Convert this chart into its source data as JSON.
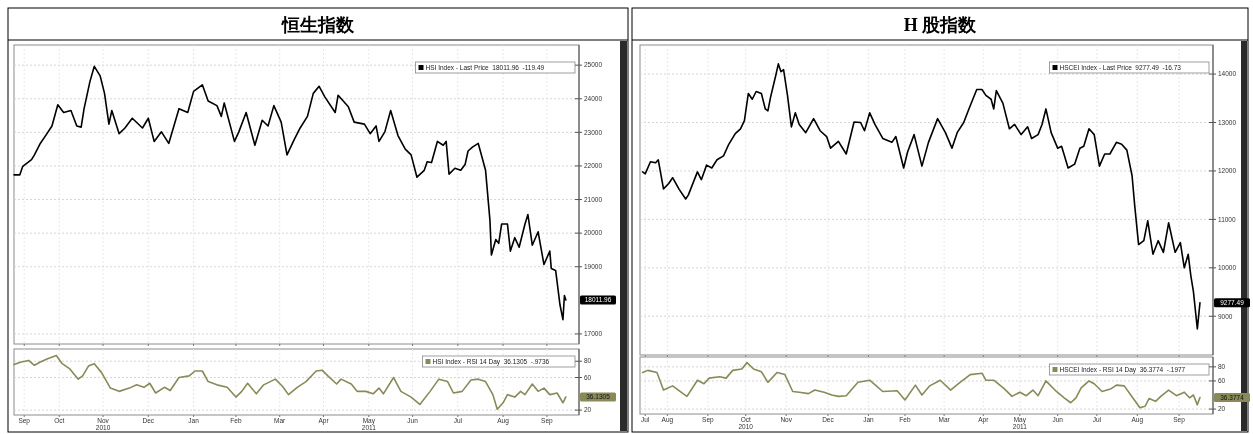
{
  "chart_data": [
    {
      "type": "line",
      "title": "恒生指数",
      "xlim": [
        "2010-09-15",
        "2011-10-07"
      ],
      "ylim": [
        16700,
        25600
      ],
      "yticks": [
        17000,
        19000,
        20000,
        21000,
        22000,
        23000,
        24000,
        25000
      ],
      "xticks": [
        {
          "value": "2010-09-22",
          "label": null
        },
        {
          "value": "2010-10-16",
          "label": null
        },
        {
          "value": "2010-11-15",
          "label": null
        },
        {
          "value": "2010-12-16",
          "label": null
        },
        {
          "value": "2011-01-16",
          "label": null
        },
        {
          "value": "2011-02-14",
          "label": null
        },
        {
          "value": "2011-03-16",
          "label": null
        },
        {
          "value": "2011-04-15",
          "label": null
        },
        {
          "value": "2011-05-16",
          "label": null
        },
        {
          "value": "2011-06-15",
          "label": null
        },
        {
          "value": "2011-07-16",
          "label": null
        },
        {
          "value": "2011-08-16",
          "label": null
        },
        {
          "value": "2011-09-15",
          "label": null
        }
      ],
      "tick_labels": "y",
      "grid": true,
      "legend": "top right",
      "x": [
        "2010-09-15",
        "2010-09-19",
        "2010-09-21",
        "2010-09-27",
        "2010-09-29",
        "2010-10-03",
        "2010-10-07",
        "2010-10-11",
        "2010-10-15",
        "2010-10-19",
        "2010-10-24",
        "2010-10-28",
        "2010-10-31",
        "2010-11-02",
        "2010-11-06",
        "2010-11-09",
        "2010-11-13",
        "2010-11-16",
        "2010-11-19",
        "2010-11-21",
        "2010-11-26",
        "2010-11-30",
        "2010-12-05",
        "2010-12-12",
        "2010-12-16",
        "2010-12-20",
        "2010-12-25",
        "2010-12-30",
        "2011-01-06",
        "2011-01-12",
        "2011-01-16",
        "2011-01-22",
        "2011-01-26",
        "2011-02-01",
        "2011-02-04",
        "2011-02-06",
        "2011-02-13",
        "2011-02-16",
        "2011-02-21",
        "2011-02-27",
        "2011-03-04",
        "2011-03-08",
        "2011-03-12",
        "2011-03-17",
        "2011-03-21",
        "2011-03-26",
        "2011-03-30",
        "2011-04-04",
        "2011-04-08",
        "2011-04-12",
        "2011-04-16",
        "2011-04-23",
        "2011-04-25",
        "2011-05-02",
        "2011-05-06",
        "2011-05-13",
        "2011-05-17",
        "2011-05-21",
        "2011-05-23",
        "2011-05-27",
        "2011-05-31",
        "2011-06-05",
        "2011-06-10",
        "2011-06-14",
        "2011-06-18",
        "2011-06-23",
        "2011-06-25",
        "2011-06-28",
        "2011-07-02",
        "2011-07-06",
        "2011-07-08",
        "2011-07-10",
        "2011-07-14",
        "2011-07-18",
        "2011-07-21",
        "2011-07-23",
        "2011-07-26",
        "2011-07-30",
        "2011-08-04",
        "2011-08-07",
        "2011-08-08",
        "2011-08-11",
        "2011-08-13",
        "2011-08-15",
        "2011-08-19",
        "2011-08-21",
        "2011-08-24",
        "2011-08-27",
        "2011-08-31",
        "2011-09-02",
        "2011-09-05",
        "2011-09-09",
        "2011-09-13",
        "2011-09-17",
        "2011-09-18",
        "2011-09-21",
        "2011-09-24",
        "2011-09-26",
        "2011-09-27",
        "2011-09-28"
      ],
      "series": [
        {
          "name": "HSI Index - Last Price  18011.96  -119.49",
          "color": "#000000",
          "values": [
            21735,
            21735,
            21990,
            22190,
            22330,
            22670,
            22925,
            23190,
            23820,
            23590,
            23650,
            23190,
            23155,
            23705,
            24510,
            24965,
            24680,
            24160,
            23245,
            23650,
            22960,
            23130,
            23420,
            23130,
            23420,
            22730,
            23015,
            22670,
            23705,
            23590,
            24220,
            24415,
            23935,
            23795,
            23475,
            23875,
            22730,
            23015,
            23590,
            22615,
            23360,
            23190,
            23795,
            23305,
            22330,
            22790,
            23130,
            23475,
            24160,
            24370,
            24050,
            23590,
            24105,
            23760,
            23305,
            23245,
            22960,
            23190,
            22730,
            23015,
            23650,
            22905,
            22500,
            22330,
            21665,
            21870,
            22125,
            22100,
            22730,
            22615,
            22730,
            21755,
            21930,
            21870,
            22045,
            22445,
            22560,
            22670,
            21870,
            20380,
            19350,
            19810,
            19695,
            20270,
            20270,
            19465,
            19865,
            19580,
            20270,
            20555,
            19640,
            20040,
            19065,
            19465,
            18950,
            18890,
            17860,
            17425,
            18145,
            18011.96
          ]
        }
      ],
      "annotations": [
        "18011.96"
      ]
    },
    {
      "type": "line",
      "xlim": [
        "2010-09-15",
        "2011-10-07"
      ],
      "ylim": [
        14,
        95
      ],
      "yticks": [
        20,
        60,
        80
      ],
      "xticks": [
        {
          "value": "2010-09-22",
          "label": "Sep"
        },
        {
          "value": "2010-10-16",
          "label": "Oct"
        },
        {
          "value": "2010-11-15",
          "label": "Nov\n2010"
        },
        {
          "value": "2010-12-16",
          "label": "Dec"
        },
        {
          "value": "2011-01-16",
          "label": "Jan"
        },
        {
          "value": "2011-02-14",
          "label": "Feb"
        },
        {
          "value": "2011-03-16",
          "label": "Mar"
        },
        {
          "value": "2011-04-15",
          "label": "Apr"
        },
        {
          "value": "2011-05-16",
          "label": "May\n2011"
        },
        {
          "value": "2011-06-15",
          "label": "Jun"
        },
        {
          "value": "2011-07-16",
          "label": "Jul"
        },
        {
          "value": "2011-08-16",
          "label": "Aug"
        },
        {
          "value": "2011-09-15",
          "label": "Sep"
        }
      ],
      "grid": true,
      "legend": "top right",
      "x": [
        "2010-09-15",
        "2010-09-20",
        "2010-09-25",
        "2010-09-29",
        "2010-10-03",
        "2010-10-08",
        "2010-10-14",
        "2010-10-18",
        "2010-10-23",
        "2010-10-29",
        "2010-11-01",
        "2010-11-05",
        "2010-11-09",
        "2010-11-14",
        "2010-11-20",
        "2010-11-26",
        "2010-12-03",
        "2010-12-08",
        "2010-12-13",
        "2010-12-17",
        "2010-12-21",
        "2010-12-27",
        "2010-12-31",
        "2011-01-06",
        "2011-01-13",
        "2011-01-17",
        "2011-01-22",
        "2011-01-26",
        "2011-02-01",
        "2011-02-08",
        "2011-02-14",
        "2011-02-18",
        "2011-02-22",
        "2011-02-28",
        "2011-03-05",
        "2011-03-13",
        "2011-03-18",
        "2011-03-22",
        "2011-03-28",
        "2011-04-03",
        "2011-04-10",
        "2011-04-14",
        "2011-04-18",
        "2011-04-24",
        "2011-04-27",
        "2011-05-04",
        "2011-05-08",
        "2011-05-14",
        "2011-05-19",
        "2011-05-23",
        "2011-05-26",
        "2011-06-02",
        "2011-06-07",
        "2011-06-14",
        "2011-06-20",
        "2011-06-27",
        "2011-07-03",
        "2011-07-09",
        "2011-07-13",
        "2011-07-19",
        "2011-07-25",
        "2011-07-30",
        "2011-08-04",
        "2011-08-09",
        "2011-08-12",
        "2011-08-16",
        "2011-08-19",
        "2011-08-24",
        "2011-08-28",
        "2011-08-31",
        "2011-09-05",
        "2011-09-09",
        "2011-09-13",
        "2011-09-17",
        "2011-09-22",
        "2011-09-26",
        "2011-09-28"
      ],
      "series": [
        {
          "name": "HSI Index - RSI 14 Day  36.1305  -.9736",
          "color": "#8a8a58",
          "values": [
            76,
            79,
            81,
            75,
            79,
            83,
            87,
            77,
            71,
            58,
            62,
            74,
            77,
            66,
            47,
            43,
            47,
            51,
            48,
            53,
            41,
            48,
            44,
            60,
            62,
            68,
            68,
            55,
            51,
            48,
            36,
            43,
            53,
            40,
            51,
            58,
            49,
            39,
            48,
            55,
            68,
            69,
            62,
            52,
            58,
            52,
            43,
            43,
            40,
            47,
            40,
            60,
            43,
            36,
            27,
            43,
            58,
            55,
            41,
            43,
            57,
            58,
            55,
            39,
            21,
            29,
            39,
            36,
            43,
            39,
            52,
            43,
            47,
            39,
            41,
            29,
            36.1305
          ]
        }
      ],
      "annotations": [
        "36.1305"
      ]
    },
    {
      "type": "line",
      "title": "H 股指数",
      "xlim": [
        "2010-07-26",
        "2011-10-08"
      ],
      "ylim": [
        8200,
        14600
      ],
      "yticks": [
        9000,
        10000,
        11000,
        12000,
        13000,
        14000
      ],
      "xticks": [
        {
          "value": "2010-07-30",
          "label": null
        },
        {
          "value": "2010-08-16",
          "label": null
        },
        {
          "value": "2010-09-16",
          "label": null
        },
        {
          "value": "2010-10-15",
          "label": null
        },
        {
          "value": "2010-11-15",
          "label": null
        },
        {
          "value": "2010-12-17",
          "label": null
        },
        {
          "value": "2011-01-17",
          "label": null
        },
        {
          "value": "2011-02-14",
          "label": null
        },
        {
          "value": "2011-03-16",
          "label": null
        },
        {
          "value": "2011-04-15",
          "label": null
        },
        {
          "value": "2011-05-13",
          "label": null
        },
        {
          "value": "2011-06-11",
          "label": null
        },
        {
          "value": "2011-07-11",
          "label": null
        },
        {
          "value": "2011-08-11",
          "label": null
        },
        {
          "value": "2011-09-12",
          "label": null
        }
      ],
      "tick_labels": "y",
      "grid": true,
      "legend": "top right",
      "x": [
        "2010-07-28",
        "2010-07-30",
        "2010-08-03",
        "2010-08-07",
        "2010-08-09",
        "2010-08-13",
        "2010-08-17",
        "2010-08-20",
        "2010-08-25",
        "2010-08-30",
        "2010-09-01",
        "2010-09-08",
        "2010-09-11",
        "2010-09-15",
        "2010-09-19",
        "2010-09-23",
        "2010-09-28",
        "2010-10-02",
        "2010-10-07",
        "2010-10-11",
        "2010-10-14",
        "2010-10-17",
        "2010-10-20",
        "2010-10-23",
        "2010-10-27",
        "2010-10-30",
        "2010-11-01",
        "2010-11-03",
        "2010-11-07",
        "2010-11-09",
        "2010-11-11",
        "2010-11-13",
        "2010-11-16",
        "2010-11-19",
        "2010-11-22",
        "2010-11-25",
        "2010-11-30",
        "2010-12-06",
        "2010-12-11",
        "2010-12-16",
        "2010-12-19",
        "2010-12-25",
        "2010-12-31",
        "2011-01-06",
        "2011-01-11",
        "2011-01-14",
        "2011-01-18",
        "2011-01-22",
        "2011-01-28",
        "2011-02-04",
        "2011-02-07",
        "2011-02-13",
        "2011-02-16",
        "2011-02-21",
        "2011-02-27",
        "2011-03-04",
        "2011-03-11",
        "2011-03-17",
        "2011-03-22",
        "2011-03-26",
        "2011-03-31",
        "2011-04-04",
        "2011-04-10",
        "2011-04-14",
        "2011-04-17",
        "2011-04-21",
        "2011-04-23",
        "2011-04-25",
        "2011-04-30",
        "2011-05-05",
        "2011-05-09",
        "2011-05-14",
        "2011-05-19",
        "2011-05-22",
        "2011-05-27",
        "2011-05-30",
        "2011-06-02",
        "2011-06-06",
        "2011-06-11",
        "2011-06-14",
        "2011-06-19",
        "2011-06-24",
        "2011-06-28",
        "2011-07-01",
        "2011-07-05",
        "2011-07-09",
        "2011-07-13",
        "2011-07-17",
        "2011-07-21",
        "2011-07-26",
        "2011-07-30",
        "2011-08-03",
        "2011-08-07",
        "2011-08-09",
        "2011-08-12",
        "2011-08-16",
        "2011-08-19",
        "2011-08-23",
        "2011-08-27",
        "2011-08-31",
        "2011-09-04",
        "2011-09-09",
        "2011-09-13",
        "2011-09-16",
        "2011-09-19",
        "2011-09-21",
        "2011-09-23",
        "2011-09-26",
        "2011-09-28"
      ],
      "series": [
        {
          "name": "HSCEI Index - Last Price  9277.49  -16.73",
          "color": "#000000",
          "values": [
            11980,
            11940,
            12190,
            12170,
            12230,
            11630,
            11740,
            11860,
            11620,
            11420,
            11500,
            11980,
            11820,
            12120,
            12060,
            12230,
            12310,
            12550,
            12770,
            12870,
            13040,
            13600,
            13480,
            13640,
            13600,
            13280,
            13240,
            13520,
            13970,
            14210,
            14050,
            14090,
            13560,
            12910,
            13200,
            12960,
            12790,
            13080,
            12830,
            12710,
            12470,
            12610,
            12350,
            13010,
            13000,
            12830,
            13200,
            12960,
            12670,
            12590,
            12710,
            12060,
            12390,
            12750,
            12100,
            12590,
            13080,
            12790,
            12470,
            12790,
            13000,
            13280,
            13680,
            13680,
            13560,
            13480,
            13280,
            13660,
            13400,
            12870,
            12960,
            12750,
            12910,
            12670,
            12750,
            12960,
            13280,
            12790,
            12470,
            12510,
            12060,
            12140,
            12470,
            12510,
            12870,
            12750,
            12100,
            12350,
            12350,
            12590,
            12550,
            12430,
            11900,
            11290,
            10480,
            10560,
            10970,
            10280,
            10560,
            10320,
            10930,
            10320,
            10520,
            10000,
            10280,
            9840,
            9510,
            8740,
            9277.49
          ]
        }
      ],
      "annotations": [
        "9277.49"
      ]
    },
    {
      "type": "line",
      "xlim": [
        "2010-07-26",
        "2011-10-08"
      ],
      "ylim": [
        13,
        94
      ],
      "yticks": [
        20,
        60,
        80
      ],
      "xticks": [
        {
          "value": "2010-07-30",
          "label": "Jul"
        },
        {
          "value": "2010-08-16",
          "label": "Aug"
        },
        {
          "value": "2010-09-16",
          "label": "Sep"
        },
        {
          "value": "2010-10-15",
          "label": "Oct\n2010"
        },
        {
          "value": "2010-11-15",
          "label": "Nov"
        },
        {
          "value": "2010-12-17",
          "label": "Dec"
        },
        {
          "value": "2011-01-17",
          "label": "Jan"
        },
        {
          "value": "2011-02-14",
          "label": "Feb"
        },
        {
          "value": "2011-03-16",
          "label": "Mar"
        },
        {
          "value": "2011-04-15",
          "label": "Apr"
        },
        {
          "value": "2011-05-13",
          "label": "May\n2011"
        },
        {
          "value": "2011-06-11",
          "label": "Jun"
        },
        {
          "value": "2011-07-11",
          "label": "Jul"
        },
        {
          "value": "2011-08-11",
          "label": "Aug"
        },
        {
          "value": "2011-09-12",
          "label": "Sep"
        }
      ],
      "grid": true,
      "legend": "top right",
      "x": [
        "2010-07-28",
        "2010-08-01",
        "2010-08-08",
        "2010-08-13",
        "2010-08-20",
        "2010-08-28",
        "2010-08-31",
        "2010-09-08",
        "2010-09-13",
        "2010-09-17",
        "2010-09-25",
        "2010-09-30",
        "2010-10-05",
        "2010-10-12",
        "2010-10-16",
        "2010-10-21",
        "2010-10-27",
        "2010-11-01",
        "2010-11-08",
        "2010-11-14",
        "2010-11-20",
        "2010-11-25",
        "2010-12-02",
        "2010-12-07",
        "2010-12-14",
        "2010-12-20",
        "2010-12-25",
        "2010-12-31",
        "2011-01-09",
        "2011-01-18",
        "2011-01-23",
        "2011-01-28",
        "2011-02-08",
        "2011-02-14",
        "2011-02-22",
        "2011-02-27",
        "2011-03-05",
        "2011-03-13",
        "2011-03-21",
        "2011-03-27",
        "2011-04-05",
        "2011-04-14",
        "2011-04-17",
        "2011-04-23",
        "2011-05-01",
        "2011-05-07",
        "2011-05-13",
        "2011-05-18",
        "2011-05-23",
        "2011-05-27",
        "2011-06-02",
        "2011-06-10",
        "2011-06-16",
        "2011-06-21",
        "2011-06-25",
        "2011-06-29",
        "2011-07-05",
        "2011-07-09",
        "2011-07-15",
        "2011-07-22",
        "2011-07-26",
        "2011-08-01",
        "2011-08-06",
        "2011-08-13",
        "2011-08-17",
        "2011-08-20",
        "2011-08-25",
        "2011-08-29",
        "2011-09-04",
        "2011-09-10",
        "2011-09-16",
        "2011-09-20",
        "2011-09-23",
        "2011-09-26",
        "2011-09-28"
      ],
      "series": [
        {
          "name": "HSCEI Index - RSI 14 Day  36.3774  -.1977",
          "color": "#8a8a58",
          "values": [
            72,
            75,
            72,
            47,
            53,
            42,
            38,
            61,
            56,
            64,
            66,
            64,
            75,
            77,
            86,
            77,
            73,
            58,
            72,
            69,
            45,
            44,
            42,
            47,
            44,
            40,
            38,
            39,
            58,
            61,
            53,
            45,
            46,
            33,
            54,
            40,
            53,
            61,
            47,
            56,
            69,
            71,
            61,
            61,
            49,
            38,
            44,
            39,
            47,
            39,
            60,
            45,
            36,
            29,
            36,
            50,
            60,
            56,
            45,
            49,
            54,
            53,
            40,
            22,
            24,
            35,
            31,
            38,
            47,
            39,
            44,
            36,
            40,
            26,
            36.3774
          ]
        }
      ],
      "annotations": [
        "36.3774"
      ]
    }
  ]
}
